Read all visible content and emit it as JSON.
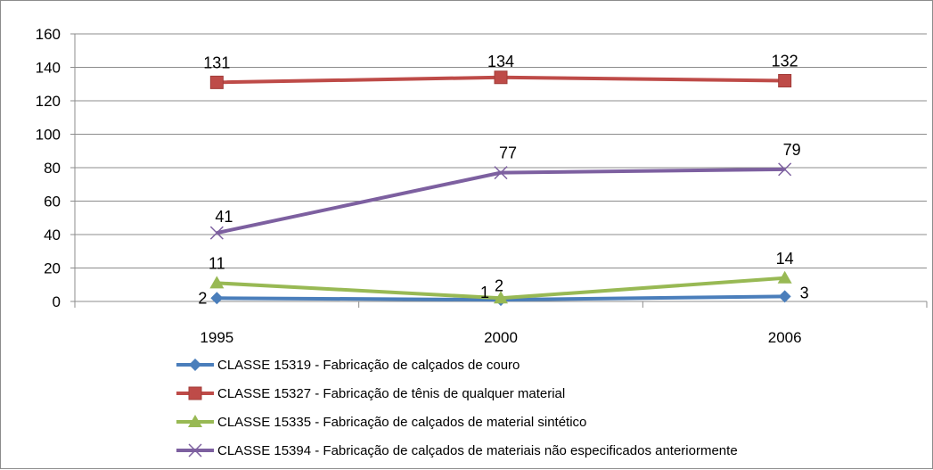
{
  "chart_data": {
    "type": "line",
    "title": "",
    "xlabel": "",
    "ylabel": "",
    "categories": [
      "1995",
      "2000",
      "2006"
    ],
    "ylim": [
      0,
      160
    ],
    "yticks": [
      "0",
      "20",
      "40",
      "60",
      "80",
      "100",
      "120",
      "140",
      "160"
    ],
    "grid": "horizontal",
    "legend": "bottom",
    "series": [
      {
        "name": "CLASSE 15319 - Fabricação de calçados de couro",
        "values": [
          2,
          1,
          3
        ],
        "labels": [
          "2",
          "1",
          "3"
        ],
        "color": "#4a7ebb",
        "marker": "diamond"
      },
      {
        "name": "CLASSE 15327 - Fabricação de tênis de qualquer material",
        "values": [
          131,
          134,
          132
        ],
        "labels": [
          "131",
          "134",
          "132"
        ],
        "color": "#be4b48",
        "marker": "square"
      },
      {
        "name": "CLASSE 15335 - Fabricação de calçados de material sintético",
        "values": [
          11,
          2,
          14
        ],
        "labels": [
          "11",
          "2",
          "14"
        ],
        "color": "#98b954",
        "marker": "triangle"
      },
      {
        "name": "CLASSE 15394 - Fabricação de calçados de materiais não especificados anteriormente",
        "values": [
          41,
          77,
          79
        ],
        "labels": [
          "41",
          "77",
          "79"
        ],
        "color": "#7d60a0",
        "marker": "x"
      }
    ]
  }
}
